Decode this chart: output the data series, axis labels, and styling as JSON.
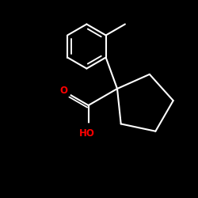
{
  "background": "#000000",
  "bond_color": "#ffffff",
  "bond_lw": 1.5,
  "O_color": "#ff0000",
  "font_size": 8.5,
  "O_label": "O",
  "HO_label": "HO"
}
